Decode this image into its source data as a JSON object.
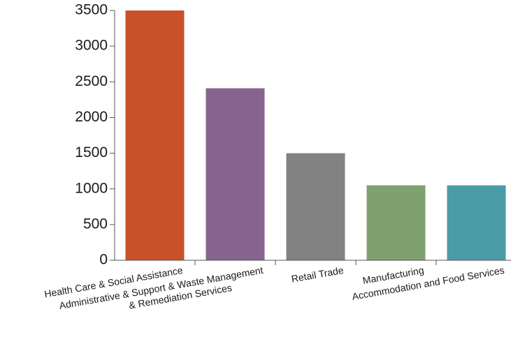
{
  "chart_data": {
    "type": "bar",
    "title": "",
    "xlabel": "",
    "ylabel": "",
    "ylim": [
      0,
      3500
    ],
    "yticks": [
      0,
      500,
      1000,
      1500,
      2000,
      2500,
      3000,
      3500
    ],
    "grid": false,
    "categories": [
      [
        "Health Care & Social Assistance"
      ],
      [
        "Administrative & Support & Waste Management",
        "& Remediation Services"
      ],
      [
        "Retail Trade"
      ],
      [
        "Manufacturing"
      ],
      [
        "Accommodation and Food Services"
      ]
    ],
    "values": [
      3500,
      2410,
      1500,
      1050,
      1050
    ],
    "colors": [
      "#c95128",
      "#87648f",
      "#818281",
      "#7fa06f",
      "#4a9ca8"
    ]
  }
}
